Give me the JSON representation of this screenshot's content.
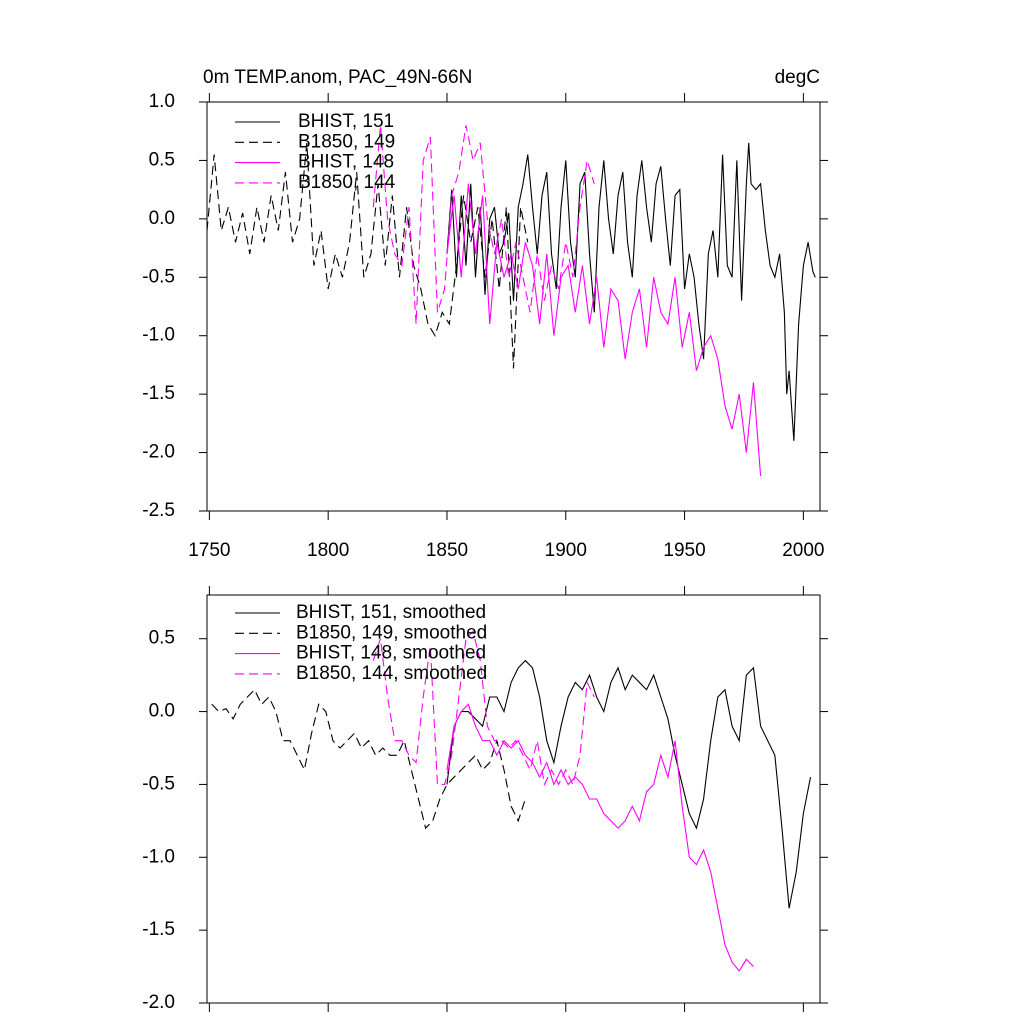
{
  "chart_data": [
    {
      "type": "line",
      "title": "0m TEMP.anom, PAC_49N-66N",
      "units": "degC",
      "xlim": [
        1749,
        2007
      ],
      "xticks": [
        1750,
        1800,
        1850,
        1900,
        1950,
        2000
      ],
      "show_xtick_labels": true,
      "ylim": [
        -2.5,
        1.0
      ],
      "yticks": [
        {
          "value": 1,
          "label": "1.0"
        },
        0.5,
        {
          "value": 0,
          "label": "0.0"
        },
        -0.5,
        {
          "value": -1,
          "label": "-1.0"
        },
        -1.5,
        {
          "value": -2,
          "label": "-2.0"
        },
        -2.5
      ],
      "series": [
        {
          "name": "BHIST, 151",
          "color": "#000000",
          "dash": false,
          "x": [
            1850,
            1852,
            1854,
            1856,
            1858,
            1860,
            1862,
            1864,
            1866,
            1868,
            1870,
            1872,
            1874,
            1876,
            1878,
            1880,
            1882,
            1884,
            1886,
            1888,
            1890,
            1892,
            1894,
            1896,
            1898,
            1900,
            1902,
            1904,
            1906,
            1908,
            1910,
            1912,
            1914,
            1916,
            1918,
            1920,
            1922,
            1924,
            1926,
            1928,
            1930,
            1932,
            1934,
            1936,
            1938,
            1940,
            1942,
            1944,
            1946,
            1948,
            1950,
            1952,
            1954,
            1956,
            1958,
            1960,
            1962,
            1964,
            1966,
            1968,
            1970,
            1972,
            1974,
            1976,
            1977,
            1978,
            1980,
            1982,
            1984,
            1986,
            1988,
            1990,
            1992,
            1993,
            1994,
            1996,
            1998,
            2000,
            2002,
            2004,
            2005
          ],
          "values": [
            -0.3,
            0.25,
            -0.5,
            0.2,
            -0.4,
            0.3,
            -0.5,
            0.1,
            -0.65,
            0.0,
            0.1,
            -0.3,
            -0.2,
            0.05,
            -0.7,
            0.1,
            0.3,
            0.55,
            0.1,
            -0.3,
            0.2,
            0.4,
            -0.3,
            -0.6,
            0.1,
            0.5,
            -0.2,
            -0.5,
            0.3,
            0.4,
            -0.3,
            -0.8,
            0.1,
            0.5,
            0.0,
            -0.3,
            0.2,
            0.4,
            -0.2,
            -0.5,
            0.2,
            0.5,
            0.1,
            -0.2,
            0.3,
            0.45,
            0.0,
            -0.4,
            0.2,
            0.25,
            -0.6,
            -0.3,
            -0.5,
            -0.9,
            -1.2,
            -0.3,
            -0.1,
            -0.5,
            0.55,
            -0.4,
            -0.5,
            0.5,
            -0.7,
            0.3,
            0.65,
            0.3,
            0.25,
            0.3,
            -0.1,
            -0.4,
            -0.5,
            -0.3,
            -0.8,
            -1.5,
            -1.3,
            -1.9,
            -0.9,
            -0.4,
            -0.2,
            -0.45,
            -0.5
          ]
        },
        {
          "name": "B1850, 149",
          "color": "#000000",
          "dash": true,
          "x": [
            1749,
            1752,
            1755,
            1758,
            1761,
            1764,
            1767,
            1770,
            1773,
            1776,
            1779,
            1782,
            1785,
            1788,
            1791,
            1794,
            1797,
            1800,
            1803,
            1806,
            1809,
            1812,
            1815,
            1818,
            1821,
            1824,
            1827,
            1830,
            1833,
            1836,
            1839,
            1842,
            1845,
            1848,
            1851,
            1854,
            1857,
            1860,
            1863,
            1866,
            1869,
            1872,
            1875,
            1878,
            1881,
            1884
          ],
          "values": [
            -0.1,
            0.55,
            -0.1,
            0.1,
            -0.2,
            0.05,
            -0.3,
            0.1,
            -0.2,
            0.2,
            -0.1,
            0.4,
            -0.2,
            0.0,
            0.65,
            -0.4,
            -0.1,
            -0.6,
            -0.3,
            -0.5,
            -0.2,
            0.4,
            -0.5,
            -0.3,
            0.3,
            -0.4,
            0.2,
            -0.5,
            0.1,
            -0.4,
            -0.6,
            -0.9,
            -1.0,
            -0.8,
            -0.9,
            -0.4,
            0.2,
            -0.2,
            0.1,
            -0.5,
            0.0,
            -0.6,
            0.1,
            -1.28,
            0.1,
            -0.2
          ]
        },
        {
          "name": "BHIST, 148",
          "color": "#ff00ff",
          "dash": false,
          "x": [
            1850,
            1853,
            1856,
            1859,
            1862,
            1865,
            1868,
            1871,
            1874,
            1877,
            1880,
            1883,
            1886,
            1889,
            1892,
            1895,
            1898,
            1901,
            1904,
            1907,
            1910,
            1913,
            1916,
            1919,
            1922,
            1925,
            1928,
            1931,
            1934,
            1937,
            1940,
            1943,
            1946,
            1949,
            1952,
            1955,
            1958,
            1961,
            1964,
            1967,
            1970,
            1973,
            1976,
            1979,
            1982
          ],
          "values": [
            -0.3,
            0.2,
            -0.5,
            0.3,
            -0.3,
            0.2,
            -0.9,
            -0.2,
            -0.5,
            -0.3,
            -0.6,
            -0.2,
            -0.4,
            -0.9,
            -0.3,
            -1.0,
            -0.5,
            -0.4,
            -0.8,
            -0.4,
            -0.9,
            -0.5,
            -1.1,
            -0.6,
            -0.7,
            -1.2,
            -0.8,
            -0.6,
            -1.1,
            -0.5,
            -0.8,
            -0.9,
            -0.5,
            -1.1,
            -0.8,
            -1.3,
            -1.1,
            -1.0,
            -1.2,
            -1.6,
            -1.8,
            -1.5,
            -2.0,
            -1.4,
            -2.2
          ]
        },
        {
          "name": "B1850, 144",
          "color": "#ff00ff",
          "dash": true,
          "x": [
            1819,
            1822,
            1825,
            1828,
            1831,
            1834,
            1837,
            1840,
            1843,
            1846,
            1849,
            1852,
            1855,
            1858,
            1861,
            1864,
            1867,
            1870,
            1873,
            1876,
            1879,
            1882,
            1885,
            1888,
            1891,
            1894,
            1897,
            1900,
            1903,
            1906,
            1909,
            1912
          ],
          "values": [
            0.1,
            0.8,
            0.0,
            -0.3,
            -0.4,
            0.1,
            -0.9,
            0.5,
            0.7,
            -0.8,
            -0.6,
            0.2,
            0.4,
            0.8,
            0.5,
            0.65,
            0.0,
            -0.3,
            0.0,
            -0.5,
            -0.2,
            -0.5,
            -0.8,
            -0.3,
            -0.7,
            -0.4,
            -0.6,
            -0.2,
            -0.5,
            0.1,
            0.5,
            0.3
          ]
        }
      ]
    },
    {
      "type": "line",
      "xlim": [
        1749,
        2007
      ],
      "xticks": [
        1750,
        1800,
        1850,
        1900,
        1950,
        2000
      ],
      "show_xtick_labels": false,
      "ylim": [
        -2.0,
        0.8
      ],
      "yticks": [
        0.5,
        {
          "value": 0,
          "label": "0.0"
        },
        -0.5,
        {
          "value": -1,
          "label": "-1.0"
        },
        -1.5,
        {
          "value": -2,
          "label": "-2.0"
        }
      ],
      "series": [
        {
          "name": "BHIST, 151, smoothed",
          "color": "#000000",
          "dash": false,
          "x": [
            1850,
            1853,
            1856,
            1859,
            1862,
            1865,
            1868,
            1871,
            1874,
            1877,
            1880,
            1883,
            1886,
            1889,
            1892,
            1895,
            1898,
            1901,
            1904,
            1907,
            1910,
            1913,
            1916,
            1919,
            1922,
            1925,
            1928,
            1931,
            1934,
            1937,
            1940,
            1943,
            1946,
            1949,
            1952,
            1955,
            1958,
            1961,
            1964,
            1967,
            1970,
            1973,
            1976,
            1979,
            1982,
            1985,
            1988,
            1991,
            1994,
            1997,
            2000,
            2003
          ],
          "values": [
            -0.5,
            -0.1,
            0.0,
            0.0,
            -0.05,
            -0.1,
            0.1,
            0.1,
            0.0,
            0.2,
            0.3,
            0.35,
            0.3,
            0.1,
            -0.2,
            -0.35,
            -0.1,
            0.1,
            0.2,
            0.15,
            0.25,
            0.1,
            0.0,
            0.2,
            0.3,
            0.15,
            0.25,
            0.2,
            0.15,
            0.25,
            0.1,
            -0.05,
            -0.3,
            -0.5,
            -0.7,
            -0.8,
            -0.6,
            -0.2,
            0.1,
            0.15,
            -0.1,
            -0.2,
            0.25,
            0.3,
            -0.1,
            -0.2,
            -0.3,
            -0.8,
            -1.35,
            -1.1,
            -0.7,
            -0.45
          ]
        },
        {
          "name": "B1850, 149, smoothed",
          "color": "#000000",
          "dash": true,
          "x": [
            1751,
            1754,
            1757,
            1760,
            1763,
            1766,
            1769,
            1772,
            1775,
            1778,
            1781,
            1784,
            1787,
            1790,
            1793,
            1796,
            1799,
            1802,
            1805,
            1808,
            1811,
            1814,
            1817,
            1820,
            1823,
            1826,
            1829,
            1832,
            1835,
            1838,
            1841,
            1844,
            1847,
            1850,
            1853,
            1856,
            1859,
            1862,
            1865,
            1868,
            1871,
            1874,
            1877,
            1880,
            1883
          ],
          "values": [
            0.05,
            0.0,
            0.02,
            -0.05,
            0.05,
            0.1,
            0.15,
            0.05,
            0.1,
            0.0,
            -0.2,
            -0.2,
            -0.3,
            -0.4,
            -0.15,
            0.05,
            0.0,
            -0.2,
            -0.25,
            -0.2,
            -0.15,
            -0.25,
            -0.2,
            -0.3,
            -0.25,
            -0.3,
            -0.3,
            -0.2,
            -0.4,
            -0.6,
            -0.8,
            -0.75,
            -0.6,
            -0.5,
            -0.45,
            -0.4,
            -0.35,
            -0.3,
            -0.4,
            -0.35,
            -0.2,
            -0.4,
            -0.65,
            -0.75,
            -0.6
          ]
        },
        {
          "name": "BHIST, 148, smoothed",
          "color": "#ff00ff",
          "dash": false,
          "x": [
            1850,
            1853,
            1856,
            1859,
            1862,
            1865,
            1868,
            1871,
            1874,
            1877,
            1880,
            1883,
            1886,
            1889,
            1892,
            1895,
            1898,
            1901,
            1904,
            1907,
            1910,
            1913,
            1916,
            1919,
            1922,
            1925,
            1928,
            1931,
            1934,
            1937,
            1940,
            1943,
            1946,
            1949,
            1952,
            1955,
            1958,
            1961,
            1964,
            1967,
            1970,
            1973,
            1976,
            1979
          ],
          "values": [
            -0.4,
            -0.1,
            0.0,
            0.05,
            -0.1,
            -0.2,
            -0.2,
            -0.3,
            -0.2,
            -0.25,
            -0.2,
            -0.3,
            -0.35,
            -0.45,
            -0.35,
            -0.5,
            -0.4,
            -0.5,
            -0.45,
            -0.5,
            -0.6,
            -0.6,
            -0.7,
            -0.75,
            -0.8,
            -0.75,
            -0.65,
            -0.75,
            -0.55,
            -0.5,
            -0.3,
            -0.45,
            -0.2,
            -0.65,
            -1.0,
            -1.05,
            -0.95,
            -1.1,
            -1.35,
            -1.6,
            -1.72,
            -1.78,
            -1.7,
            -1.75
          ]
        },
        {
          "name": "B1850, 144, smoothed",
          "color": "#ff00ff",
          "dash": true,
          "x": [
            1819,
            1822,
            1825,
            1828,
            1831,
            1834,
            1837,
            1840,
            1843,
            1846,
            1849,
            1852,
            1855,
            1858,
            1861,
            1864,
            1867,
            1870,
            1873,
            1876,
            1879,
            1882,
            1885,
            1888,
            1891,
            1894,
            1897,
            1900,
            1903,
            1906,
            1909,
            1912
          ],
          "values": [
            0.35,
            0.5,
            0.1,
            -0.2,
            -0.2,
            -0.3,
            -0.35,
            0.1,
            0.45,
            -0.5,
            -0.5,
            -0.3,
            0.1,
            0.5,
            0.55,
            0.35,
            -0.1,
            -0.2,
            -0.2,
            -0.25,
            -0.2,
            -0.3,
            -0.4,
            -0.2,
            -0.5,
            -0.4,
            -0.5,
            -0.4,
            -0.5,
            -0.3,
            0.2,
            0.1
          ]
        }
      ]
    }
  ]
}
